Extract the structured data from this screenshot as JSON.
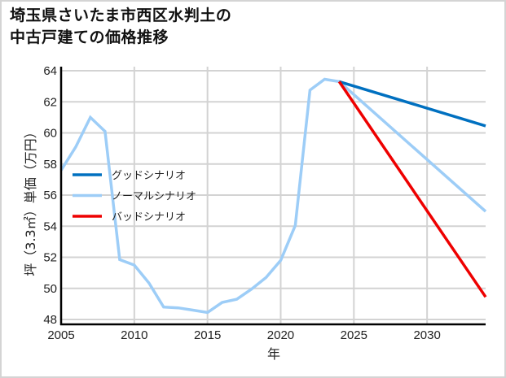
{
  "title": "埼玉県さいたま市西区水判土の\n中古戸建ての価格推移",
  "chart_data": {
    "type": "line",
    "title": "埼玉県さいたま市西区水判土の中古戸建ての価格推移",
    "xlabel": "年",
    "ylabel": "坪（3.3㎡）単価（万円）",
    "xlim": [
      2005,
      2034
    ],
    "ylim": [
      47.7,
      64.3
    ],
    "xticks": [
      2005,
      2010,
      2015,
      2020,
      2025,
      2030
    ],
    "yticks": [
      48,
      50,
      52,
      54,
      56,
      58,
      60,
      62,
      64
    ],
    "grid": true,
    "legend_position": "upper-left (inside, mid-left)",
    "series": [
      {
        "name": "グッドシナリオ",
        "color": "#0070c0",
        "x": [
          2024,
          2034
        ],
        "values": [
          63.3,
          60.45
        ]
      },
      {
        "name": "ノーマルシナリオ",
        "color": "#9dcdf7",
        "x": [
          2005,
          2006,
          2007,
          2008,
          2009,
          2010,
          2011,
          2012,
          2013,
          2014,
          2015,
          2016,
          2017,
          2018,
          2019,
          2020,
          2021,
          2022,
          2023,
          2024,
          2034
        ],
        "values": [
          57.6,
          59.1,
          61.0,
          60.1,
          51.85,
          51.5,
          50.35,
          48.8,
          48.75,
          48.6,
          48.45,
          49.1,
          49.3,
          49.95,
          50.7,
          51.8,
          54.05,
          62.75,
          63.45,
          63.3,
          54.95
        ]
      },
      {
        "name": "バッドシナリオ",
        "color": "#ee0000",
        "x": [
          2024,
          2034
        ],
        "values": [
          63.3,
          49.45
        ]
      }
    ]
  }
}
